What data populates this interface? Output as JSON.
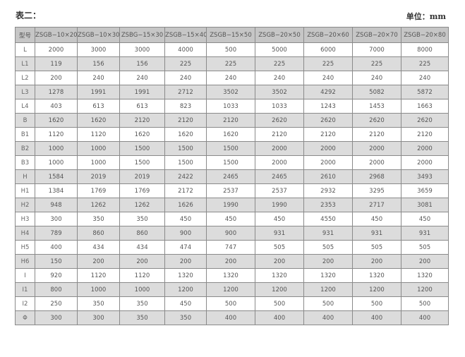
{
  "title": "表二：",
  "unit": "单位：mm",
  "table": {
    "headers": [
      "型号",
      "ZSGB−10×20",
      "ZSGB−10×30",
      "ZSBG−15×30",
      "ZSGB−15×40",
      "ZSGB−15×50",
      "ZSGB−20×50",
      "ZSGB−20×60",
      "ZSGB−20×70",
      "ZSGB−20×80"
    ],
    "rows": [
      [
        "L",
        "2000",
        "3000",
        "3000",
        "4000",
        "500",
        "5000",
        "6000",
        "7000",
        "8000"
      ],
      [
        "L1",
        "119",
        "156",
        "156",
        "225",
        "225",
        "225",
        "225",
        "225",
        "225"
      ],
      [
        "L2",
        "200",
        "240",
        "240",
        "240",
        "240",
        "240",
        "240",
        "240",
        "240"
      ],
      [
        "L3",
        "1278",
        "1991",
        "1991",
        "2712",
        "3502",
        "3502",
        "4292",
        "5082",
        "5872"
      ],
      [
        "L4",
        "403",
        "613",
        "613",
        "823",
        "1033",
        "1033",
        "1243",
        "1453",
        "1663"
      ],
      [
        "B",
        "1620",
        "1620",
        "2120",
        "2120",
        "2120",
        "2620",
        "2620",
        "2620",
        "2620"
      ],
      [
        "B1",
        "1120",
        "1120",
        "1620",
        "1620",
        "1620",
        "2120",
        "2120",
        "2120",
        "2120"
      ],
      [
        "B2",
        "1000",
        "1000",
        "1500",
        "1500",
        "1500",
        "2000",
        "2000",
        "2000",
        "2000"
      ],
      [
        "B3",
        "1000",
        "1000",
        "1500",
        "1500",
        "1500",
        "2000",
        "2000",
        "2000",
        "2000"
      ],
      [
        "H",
        "1584",
        "2019",
        "2019",
        "2422",
        "2465",
        "2465",
        "2610",
        "2968",
        "3493"
      ],
      [
        "H1",
        "1384",
        "1769",
        "1769",
        "2172",
        "2537",
        "2537",
        "2932",
        "3295",
        "3659"
      ],
      [
        "H2",
        "948",
        "1262",
        "1262",
        "1626",
        "1990",
        "1990",
        "2353",
        "2717",
        "3081"
      ],
      [
        "H3",
        "300",
        "350",
        "350",
        "450",
        "450",
        "450",
        "4550",
        "450",
        "450"
      ],
      [
        "H4",
        "789",
        "860",
        "860",
        "900",
        "900",
        "931",
        "931",
        "931",
        "931"
      ],
      [
        "H5",
        "400",
        "434",
        "434",
        "474",
        "747",
        "505",
        "505",
        "505",
        "505"
      ],
      [
        "H6",
        "150",
        "200",
        "200",
        "200",
        "200",
        "200",
        "200",
        "200",
        "200"
      ],
      [
        "I",
        "920",
        "1120",
        "1120",
        "1320",
        "1320",
        "1320",
        "1320",
        "1320",
        "1320"
      ],
      [
        "I1",
        "800",
        "1000",
        "1000",
        "1200",
        "1200",
        "1200",
        "1200",
        "1200",
        "1200"
      ],
      [
        "I2",
        "250",
        "350",
        "350",
        "450",
        "500",
        "500",
        "500",
        "500",
        "500"
      ],
      [
        "Φ",
        "300",
        "300",
        "350",
        "350",
        "400",
        "400",
        "400",
        "400",
        "400"
      ]
    ]
  }
}
